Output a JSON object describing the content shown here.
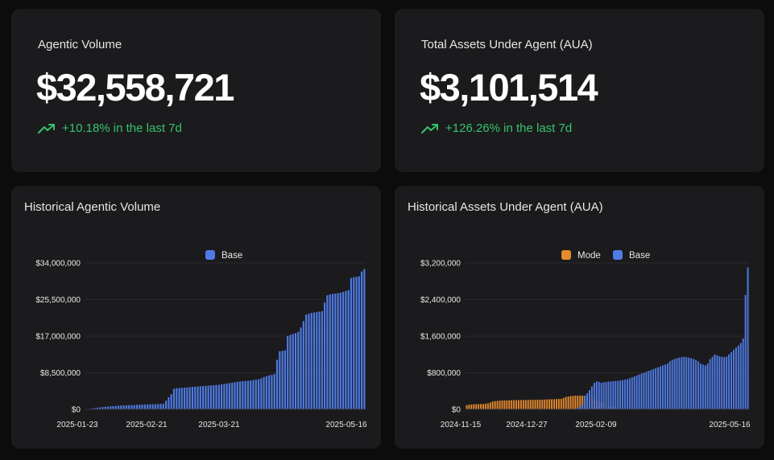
{
  "cards": {
    "agentic_volume": {
      "label": "Agentic Volume",
      "value": "$32,558,721",
      "change": "+10.18% in the last 7d",
      "change_color": "#35c46a"
    },
    "aua": {
      "label": "Total Assets Under Agent (AUA)",
      "value": "$3,101,514",
      "change": "+126.26% in the last 7d",
      "change_color": "#35c46a"
    }
  },
  "icons": {
    "trend": "trending-up-icon"
  },
  "colors": {
    "base": "#4f7be6",
    "mode": "#e58a2e",
    "card_bg": "#1b1b1d",
    "page_bg": "#0c0c0d"
  },
  "chart_data": [
    {
      "type": "bar",
      "title": "Historical Agentic Volume",
      "legend_position": "top-center",
      "grid": true,
      "yticks": [
        "$34,000,000",
        "$25,500,000",
        "$17,000,000",
        "$8,500,000",
        "$0"
      ],
      "ylim": [
        0,
        34000000
      ],
      "xticks": [
        "2025-01-23",
        "2025-02-21",
        "2025-03-21",
        "2025-05-16"
      ],
      "series": [
        {
          "name": "Base",
          "color": "#4f7be6",
          "values": [
            50000,
            120000,
            220000,
            300000,
            380000,
            450000,
            520000,
            580000,
            640000,
            700000,
            760000,
            800000,
            850000,
            880000,
            910000,
            930000,
            950000,
            980000,
            1000000,
            1050000,
            1080000,
            1100000,
            1120000,
            1140000,
            1160000,
            1180000,
            1200000,
            1220000,
            1250000,
            1280000,
            2000000,
            2800000,
            3500000,
            4800000,
            4900000,
            4950000,
            5000000,
            5050000,
            5100000,
            5150000,
            5200000,
            5250000,
            5300000,
            5350000,
            5400000,
            5450000,
            5500000,
            5550000,
            5600000,
            5650000,
            5700000,
            5800000,
            5900000,
            6000000,
            6100000,
            6200000,
            6300000,
            6400000,
            6500000,
            6550000,
            6600000,
            6650000,
            6700000,
            6800000,
            6900000,
            7000000,
            7200000,
            7500000,
            7700000,
            7900000,
            8000000,
            8200000,
            11500000,
            13500000,
            13600000,
            13700000,
            17000000,
            17300000,
            17500000,
            17700000,
            18000000,
            19000000,
            20500000,
            22000000,
            22200000,
            22400000,
            22500000,
            22600000,
            22700000,
            22800000,
            24800000,
            26500000,
            26700000,
            26800000,
            26900000,
            27000000,
            27100000,
            27300000,
            27500000,
            27700000,
            30500000,
            30700000,
            30800000,
            30900000,
            32000000,
            32558721
          ]
        }
      ]
    },
    {
      "type": "bar",
      "title": "Historical Assets Under Agent (AUA)",
      "legend_position": "top-center",
      "grid": true,
      "yticks": [
        "$3,200,000",
        "$2,400,000",
        "$1,600,000",
        "$800,000",
        "$0"
      ],
      "ylim": [
        0,
        3200000
      ],
      "xticks": [
        "2024-11-15",
        "2024-12-27",
        "2025-02-09",
        "2025-05-16"
      ],
      "series": [
        {
          "name": "Mode",
          "color": "#e58a2e",
          "values": [
            90000,
            100000,
            105000,
            110000,
            112000,
            114000,
            116000,
            118000,
            120000,
            130000,
            150000,
            170000,
            180000,
            185000,
            190000,
            192000,
            194000,
            196000,
            198000,
            200000,
            200000,
            200000,
            202000,
            203000,
            204000,
            205000,
            206000,
            207000,
            208000,
            209000,
            210000,
            210000,
            212000,
            214000,
            216000,
            218000,
            220000,
            222000,
            224000,
            226000,
            230000,
            250000,
            270000,
            280000,
            290000,
            295000,
            300000,
            300000,
            300000,
            300000,
            290000,
            280000,
            260000,
            240000,
            220000,
            200000,
            180000,
            160000,
            140000,
            120000,
            100000,
            80000,
            60000,
            40000,
            20000,
            0,
            0,
            0,
            0,
            0,
            0,
            0,
            0,
            0,
            0,
            0,
            0,
            0,
            0,
            0,
            0,
            0,
            0,
            0,
            0,
            0,
            0,
            0,
            0,
            0,
            0,
            0,
            0,
            0,
            0,
            0,
            0,
            0,
            0,
            0,
            0,
            0,
            0,
            0,
            0,
            0,
            0,
            0,
            0,
            0,
            0,
            0,
            0,
            0,
            0,
            0,
            0,
            0,
            0,
            0
          ]
        },
        {
          "name": "Base",
          "color": "#4f7be6",
          "values": [
            0,
            0,
            0,
            0,
            0,
            0,
            0,
            0,
            0,
            0,
            0,
            0,
            0,
            0,
            0,
            0,
            0,
            0,
            0,
            0,
            0,
            0,
            0,
            0,
            0,
            0,
            0,
            0,
            0,
            0,
            0,
            0,
            0,
            0,
            0,
            0,
            0,
            0,
            0,
            0,
            0,
            0,
            0,
            0,
            0,
            0,
            0,
            30000,
            60000,
            100000,
            300000,
            350000,
            420000,
            500000,
            580000,
            610000,
            600000,
            580000,
            590000,
            600000,
            605000,
            610000,
            615000,
            620000,
            625000,
            630000,
            640000,
            650000,
            660000,
            680000,
            700000,
            720000,
            740000,
            760000,
            780000,
            800000,
            820000,
            840000,
            860000,
            880000,
            900000,
            920000,
            940000,
            960000,
            980000,
            1000000,
            1050000,
            1080000,
            1100000,
            1120000,
            1130000,
            1140000,
            1150000,
            1140000,
            1130000,
            1120000,
            1100000,
            1080000,
            1050000,
            1000000,
            980000,
            960000,
            1000000,
            1100000,
            1150000,
            1200000,
            1180000,
            1160000,
            1150000,
            1140000,
            1150000,
            1200000,
            1250000,
            1300000,
            1350000,
            1400000,
            1450000,
            1550000,
            2500000,
            3101514
          ]
        }
      ]
    }
  ]
}
